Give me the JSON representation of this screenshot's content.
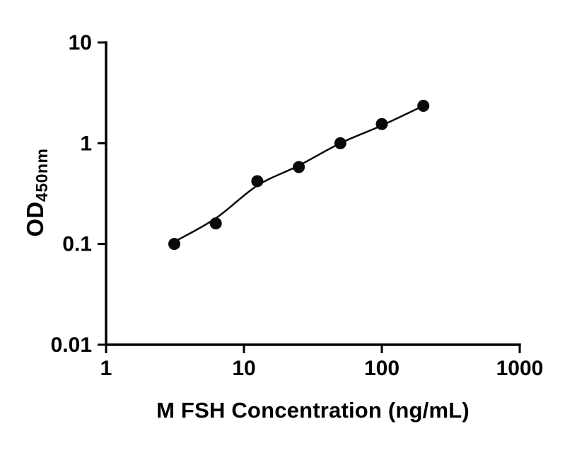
{
  "chart_data": {
    "type": "scatter",
    "title": "",
    "xlabel": "M FSH Concentration (ng/mL)",
    "ylabel": "OD",
    "ylabel_subscript": "450nm",
    "x_scale": "log",
    "y_scale": "log",
    "xlim": [
      1,
      1000
    ],
    "ylim": [
      0.01,
      10
    ],
    "grid": false,
    "legend": "none",
    "x_ticks": [
      1,
      10,
      100,
      1000
    ],
    "x_tick_labels": [
      "1",
      "10",
      "100",
      "1000"
    ],
    "y_ticks": [
      0.01,
      0.1,
      1,
      10
    ],
    "y_tick_labels": [
      "0.01",
      "0.1",
      "1",
      "10"
    ],
    "series": [
      {
        "name": "standard-points",
        "type": "scatter",
        "marker": "filled-circle",
        "marker_color": "#0a0a0a",
        "x": [
          3.125,
          6.25,
          12.5,
          25,
          50,
          100,
          200
        ],
        "y": [
          0.1,
          0.16,
          0.42,
          0.58,
          1.0,
          1.55,
          2.35
        ]
      },
      {
        "name": "fit-curve",
        "type": "line",
        "line_color": "#0a0a0a",
        "x": [
          3.125,
          6.25,
          12.5,
          25,
          50,
          100,
          200
        ],
        "y": [
          0.105,
          0.18,
          0.38,
          0.6,
          1.0,
          1.5,
          2.35
        ]
      }
    ],
    "colors": {
      "axis": "#000000",
      "background": "#ffffff",
      "marker": "#0a0a0a",
      "line": "#0a0a0a"
    }
  }
}
